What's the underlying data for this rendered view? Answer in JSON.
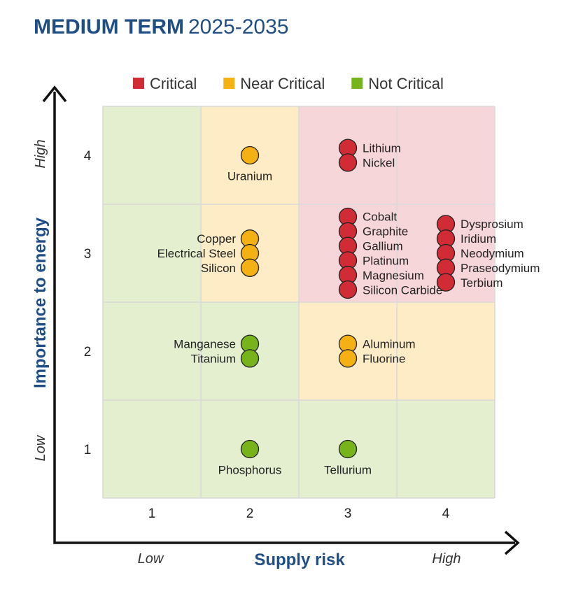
{
  "title": {
    "main": "MEDIUM TERM",
    "period": "2025-2035"
  },
  "colors": {
    "critical": "#d12b36",
    "near_critical": "#f5b014",
    "not_critical": "#77b31a",
    "zone_critical": "#f7d6da",
    "zone_near_critical": "#fdecc6",
    "zone_not_critical": "#e3efcf",
    "accent": "#1f4e85"
  },
  "legend": [
    {
      "key": "critical",
      "label": "Critical"
    },
    {
      "key": "near_critical",
      "label": "Near Critical"
    },
    {
      "key": "not_critical",
      "label": "Not Critical"
    }
  ],
  "chart_data": {
    "type": "scatter",
    "xlabel": "Supply risk",
    "ylabel": "Importance to energy",
    "x_low": "Low",
    "x_high": "High",
    "y_low": "Low",
    "y_high": "High",
    "x_ticks": [
      "1",
      "2",
      "3",
      "4"
    ],
    "y_ticks": [
      "1",
      "2",
      "3",
      "4"
    ],
    "xlim": [
      0.5,
      4.5
    ],
    "ylim": [
      0.5,
      4.5
    ],
    "legend_position": "top",
    "grid": true,
    "zones": [
      {
        "x": 1,
        "y": 4,
        "category": "not_critical"
      },
      {
        "x": 2,
        "y": 4,
        "category": "near_critical"
      },
      {
        "x": 3,
        "y": 4,
        "category": "critical"
      },
      {
        "x": 4,
        "y": 4,
        "category": "critical"
      },
      {
        "x": 1,
        "y": 3,
        "category": "not_critical"
      },
      {
        "x": 2,
        "y": 3,
        "category": "near_critical"
      },
      {
        "x": 3,
        "y": 3,
        "category": "critical"
      },
      {
        "x": 4,
        "y": 3,
        "category": "critical"
      },
      {
        "x": 1,
        "y": 2,
        "category": "not_critical"
      },
      {
        "x": 2,
        "y": 2,
        "category": "not_critical"
      },
      {
        "x": 3,
        "y": 2,
        "category": "near_critical"
      },
      {
        "x": 4,
        "y": 2,
        "category": "near_critical"
      },
      {
        "x": 1,
        "y": 1,
        "category": "not_critical"
      },
      {
        "x": 2,
        "y": 1,
        "category": "not_critical"
      },
      {
        "x": 3,
        "y": 1,
        "category": "not_critical"
      },
      {
        "x": 4,
        "y": 1,
        "category": "not_critical"
      }
    ],
    "groups": [
      {
        "x": 3,
        "y": 4,
        "category": "critical",
        "label_side": "right",
        "labels": [
          "Lithium",
          "Nickel"
        ]
      },
      {
        "x": 2,
        "y": 4,
        "category": "near_critical",
        "label_side": "below",
        "labels": [
          "Uranium"
        ]
      },
      {
        "x": 2,
        "y": 3,
        "category": "near_critical",
        "label_side": "left",
        "labels": [
          "Copper",
          "Electrical Steel",
          "Silicon"
        ]
      },
      {
        "x": 3,
        "y": 3,
        "category": "critical",
        "label_side": "right",
        "labels": [
          "Cobalt",
          "Graphite",
          "Gallium",
          "Platinum",
          "Magnesium",
          "Silicon Carbide"
        ]
      },
      {
        "x": 4,
        "y": 3,
        "category": "critical",
        "label_side": "right",
        "labels": [
          "Dysprosium",
          "Iridium",
          "Neodymium",
          "Praseodymium",
          "Terbium"
        ]
      },
      {
        "x": 2,
        "y": 2,
        "category": "not_critical",
        "label_side": "left",
        "labels": [
          "Manganese",
          "Titanium"
        ]
      },
      {
        "x": 3,
        "y": 2,
        "category": "near_critical",
        "label_side": "right",
        "labels": [
          "Aluminum",
          "Fluorine"
        ]
      },
      {
        "x": 2,
        "y": 1,
        "category": "not_critical",
        "label_side": "below",
        "labels": [
          "Phosphorus"
        ]
      },
      {
        "x": 3,
        "y": 1,
        "category": "not_critical",
        "label_side": "below",
        "labels": [
          "Tellurium"
        ]
      }
    ]
  }
}
